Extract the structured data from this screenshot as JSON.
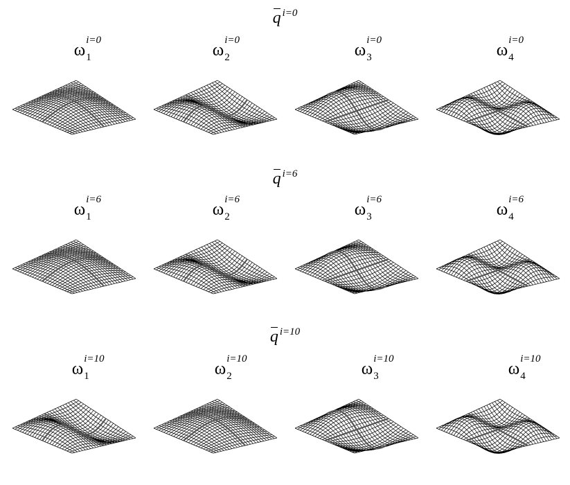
{
  "rows": [
    {
      "header": {
        "symbol": "q",
        "superscript": "i=0"
      },
      "modes": [
        {
          "symbol": "ω",
          "subscript": "1",
          "superscript": "i=0",
          "mode": [
            1,
            1
          ]
        },
        {
          "symbol": "ω",
          "subscript": "2",
          "superscript": "i=0",
          "mode": [
            2,
            1
          ]
        },
        {
          "symbol": "ω",
          "subscript": "3",
          "superscript": "i=0",
          "mode": [
            1,
            2
          ]
        },
        {
          "symbol": "ω",
          "subscript": "4",
          "superscript": "i=0",
          "mode": [
            2,
            2
          ]
        }
      ]
    },
    {
      "header": {
        "symbol": "q",
        "superscript": "i=6"
      },
      "modes": [
        {
          "symbol": "ω",
          "subscript": "1",
          "superscript": "i=6",
          "mode": [
            1,
            1
          ]
        },
        {
          "symbol": "ω",
          "subscript": "2",
          "superscript": "i=6",
          "mode": [
            2,
            1
          ]
        },
        {
          "symbol": "ω",
          "subscript": "3",
          "superscript": "i=6",
          "mode": [
            1,
            2
          ]
        },
        {
          "symbol": "ω",
          "subscript": "4",
          "superscript": "i=6",
          "mode": [
            2,
            2
          ]
        }
      ]
    },
    {
      "header": {
        "symbol": "q",
        "superscript": "i=10"
      },
      "modes": [
        {
          "symbol": "ω",
          "subscript": "1",
          "superscript": "i=10",
          "mode": [
            2,
            1
          ]
        },
        {
          "symbol": "ω",
          "subscript": "2",
          "superscript": "i=10",
          "mode": [
            1,
            1
          ]
        },
        {
          "symbol": "ω",
          "subscript": "3",
          "superscript": "i=10",
          "mode": [
            1,
            2
          ]
        },
        {
          "symbol": "ω",
          "subscript": "4",
          "superscript": "i=10",
          "mode": [
            2,
            2
          ]
        }
      ]
    }
  ],
  "colors": {
    "mesh": "#000000",
    "background": "#ffffff"
  }
}
